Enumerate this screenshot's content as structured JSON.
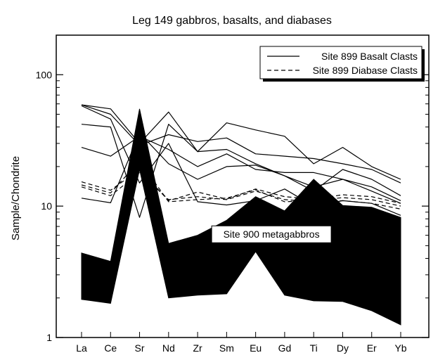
{
  "chart_data": {
    "type": "line",
    "title": "Leg 149 gabbros, basalts, and diabases",
    "ylabel": "Sample/Chondrite",
    "xlabel": "",
    "yscale": "log",
    "ylim": [
      1,
      200
    ],
    "yticks": [
      {
        "value": 1,
        "label": "1"
      },
      {
        "value": 10,
        "label": "10"
      },
      {
        "value": 100,
        "label": "100"
      }
    ],
    "categories": [
      "La",
      "Ce",
      "Sr",
      "Nd",
      "Zr",
      "Sm",
      "Eu",
      "Gd",
      "Ti",
      "Dy",
      "Er",
      "Yb"
    ],
    "legend": {
      "placement": "top-right",
      "entries": [
        {
          "label": "Site 899 Basalt Clasts",
          "style": "solid"
        },
        {
          "label": "Site 899 Diabase Clasts",
          "style": "dashed"
        }
      ]
    },
    "annotation": {
      "text": "Site 900 metagabbros",
      "category": "Zr",
      "value": 6.1
    },
    "band": {
      "name": "Site 900 metagabbros",
      "upper": [
        4.4,
        3.8,
        55,
        5.2,
        6.0,
        7.8,
        11.8,
        9.2,
        16.0,
        10.1,
        9.8,
        8.2
      ],
      "lower": [
        1.95,
        1.82,
        19,
        2.0,
        2.1,
        2.15,
        4.5,
        2.1,
        1.9,
        1.88,
        1.6,
        1.25
      ]
    },
    "series": [
      {
        "style": "solid",
        "values": [
          59,
          55,
          30,
          52,
          26,
          43,
          38,
          34,
          21,
          28,
          20,
          16
        ]
      },
      {
        "style": "solid",
        "values": [
          59,
          50,
          29,
          35,
          31,
          33,
          25,
          24,
          23,
          21,
          19,
          15
        ]
      },
      {
        "style": "solid",
        "values": [
          42,
          40,
          8.2,
          42,
          26,
          27,
          21,
          17,
          13,
          19,
          16,
          12
        ]
      },
      {
        "style": "solid",
        "values": [
          28,
          24,
          34,
          27,
          20,
          25,
          19,
          18,
          18,
          16,
          14,
          11
        ]
      },
      {
        "style": "solid",
        "values": [
          11.5,
          10.6,
          36,
          21,
          16,
          20,
          20.5,
          17,
          14,
          16,
          13,
          10.5
        ]
      },
      {
        "style": "solid",
        "values": [
          58,
          46,
          15,
          30,
          10.8,
          10.2,
          11,
          13.5,
          10,
          11,
          10.5,
          8.5
        ]
      },
      {
        "style": "dashed",
        "values": [
          15.3,
          13.2,
          19,
          11.0,
          12.8,
          11.3,
          13.5,
          11.8,
          11.3,
          12.2,
          11.8,
          10.5
        ]
      },
      {
        "style": "dashed",
        "values": [
          14.5,
          12.6,
          22,
          10.8,
          11.2,
          11.5,
          13.3,
          10.8,
          11.0,
          11.6,
          11.2,
          10.0
        ]
      },
      {
        "style": "dashed",
        "values": [
          14.0,
          12.0,
          18,
          11.2,
          11.8,
          11.2,
          13.0,
          11.2,
          10.8,
          11.0,
          10.5,
          9.5
        ]
      }
    ]
  }
}
